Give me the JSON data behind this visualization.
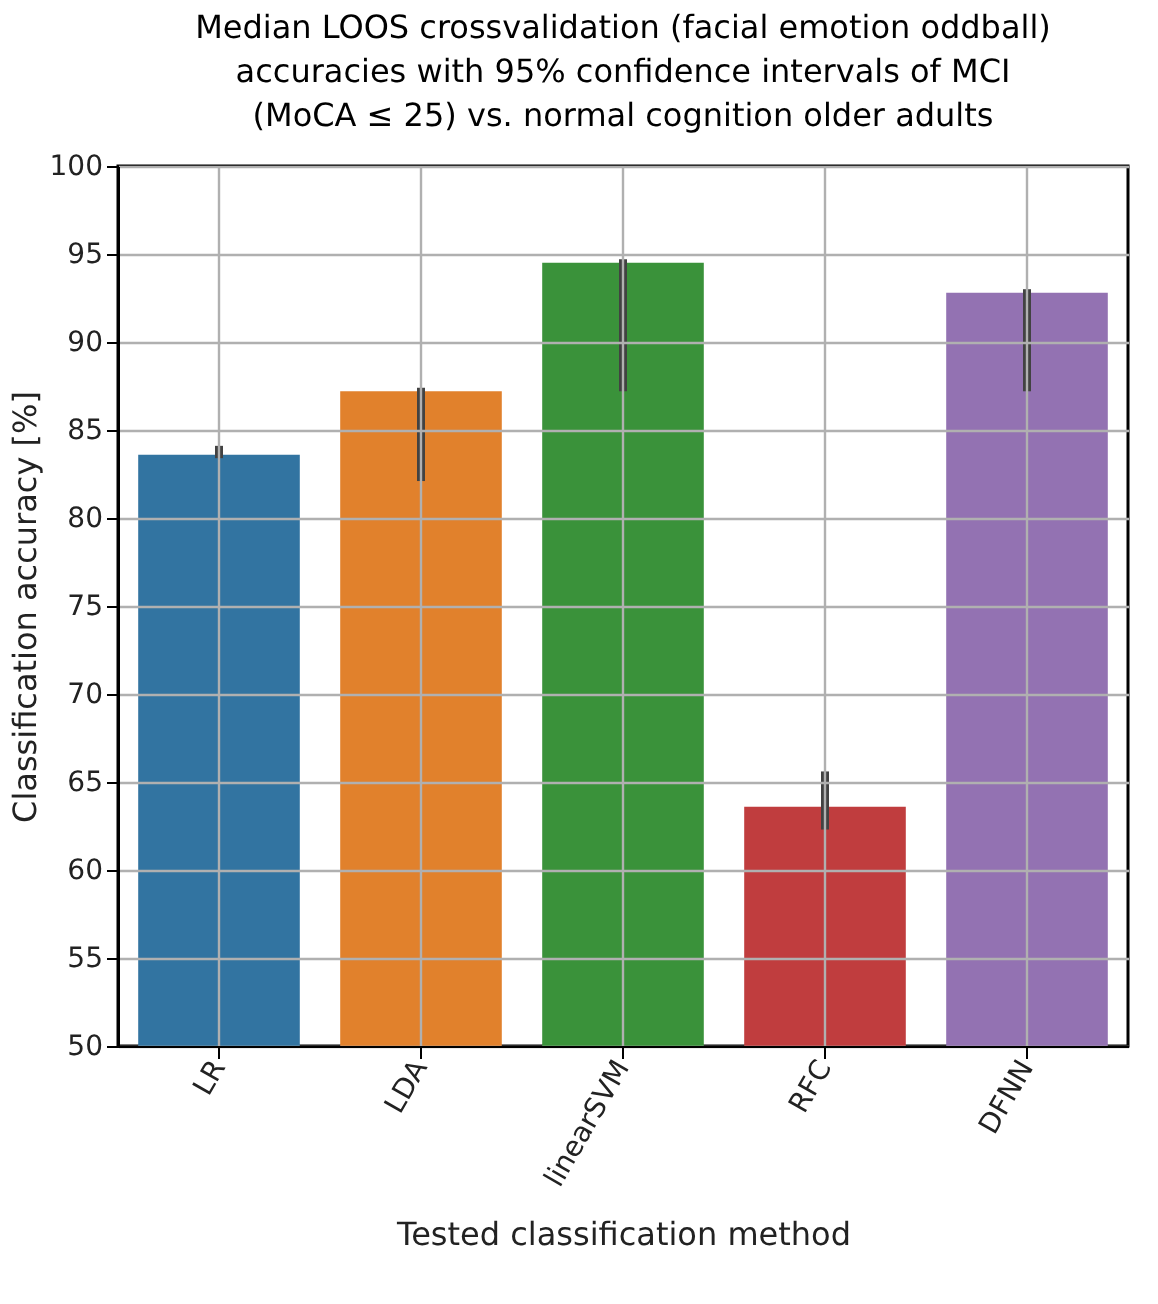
{
  "chart_data": {
    "type": "bar",
    "title": [
      "Median LOOS crossvalidation (facial emotion oddball)",
      "accuracies with 95% confidence intervals of MCI",
      "(MoCA ≤ 25) vs. normal cognition older adults"
    ],
    "xlabel": "Tested classification method",
    "ylabel": "Classification accuracy [%]",
    "categories": [
      "LR",
      "LDA",
      "linearSVM",
      "RFC",
      "DFNN"
    ],
    "values": [
      83.6,
      87.2,
      94.5,
      63.6,
      92.8
    ],
    "colors": [
      "#3274a1",
      "#e1812c",
      "#3a923a",
      "#c03d3e",
      "#9372b2"
    ],
    "errors": [
      [
        83.4,
        84.1
      ],
      [
        82.1,
        87.4
      ],
      [
        87.2,
        94.7
      ],
      [
        62.3,
        65.6
      ],
      [
        87.2,
        93.0
      ]
    ],
    "ylim": [
      50,
      100
    ],
    "yticks": [
      50,
      55,
      60,
      65,
      70,
      75,
      80,
      85,
      90,
      95,
      100
    ],
    "grid": true
  }
}
